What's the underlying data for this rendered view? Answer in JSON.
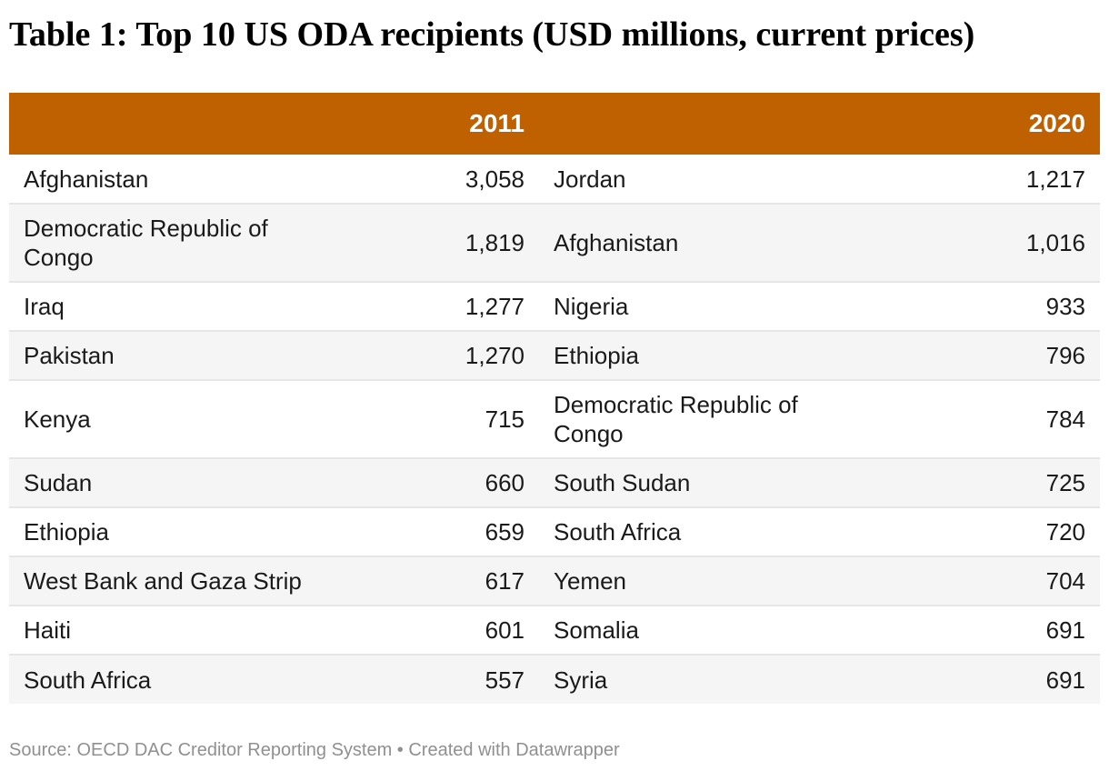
{
  "title": "Table 1: Top 10 US ODA recipients (USD millions, current prices)",
  "colors": {
    "header_background": "#bf6100",
    "header_text": "#ffffff",
    "stripe": "#f5f5f5",
    "source_text": "#909090"
  },
  "source": "Source: OECD DAC Creditor Reporting System • Created with Datawrapper",
  "chart_data": {
    "type": "table",
    "columns": [
      "",
      "2011",
      "",
      "2020"
    ],
    "rows": [
      {
        "country_2011": "Afghanistan",
        "value_2011": "3,058",
        "country_2020": "Jordan",
        "value_2020": "1,217"
      },
      {
        "country_2011": "Democratic Republic of Congo",
        "value_2011": "1,819",
        "country_2020": "Afghanistan",
        "value_2020": "1,016"
      },
      {
        "country_2011": "Iraq",
        "value_2011": "1,277",
        "country_2020": "Nigeria",
        "value_2020": "933"
      },
      {
        "country_2011": "Pakistan",
        "value_2011": "1,270",
        "country_2020": "Ethiopia",
        "value_2020": "796"
      },
      {
        "country_2011": "Kenya",
        "value_2011": "715",
        "country_2020": "Democratic Republic of Congo",
        "value_2020": "784"
      },
      {
        "country_2011": "Sudan",
        "value_2011": "660",
        "country_2020": "South Sudan",
        "value_2020": "725"
      },
      {
        "country_2011": "Ethiopia",
        "value_2011": "659",
        "country_2020": "South Africa",
        "value_2020": "720"
      },
      {
        "country_2011": "West Bank and Gaza Strip",
        "value_2011": "617",
        "country_2020": "Yemen",
        "value_2020": "704"
      },
      {
        "country_2011": "Haiti",
        "value_2011": "601",
        "country_2020": "Somalia",
        "value_2020": "691"
      },
      {
        "country_2011": "South Africa",
        "value_2011": "557",
        "country_2020": "Syria",
        "value_2020": "691"
      }
    ]
  }
}
